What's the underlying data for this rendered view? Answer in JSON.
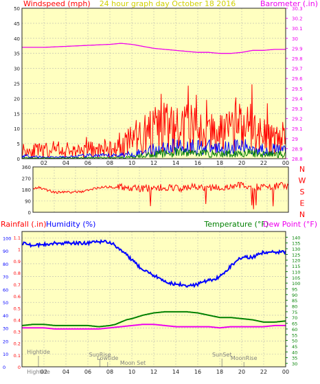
{
  "colors": {
    "background": "#ffffff",
    "plot_bg": "#ffffc0",
    "grid": "#b8b8b0",
    "frame": "#202020",
    "title": "#d0d000",
    "wind_gust": "#ff0000",
    "wind_avg": "#0000ff",
    "wind_low": "#008000",
    "barometer": "#ee00ee",
    "direction": "#ff0000",
    "rain": "#ff0000",
    "humidity": "#0000ff",
    "temperature": "#008000",
    "dewpoint": "#ee00ee",
    "axis_text": "#202020",
    "annotation": "#808080"
  },
  "chart_data": [
    {
      "type": "line",
      "title": "24 hour graph day   October 18 2016",
      "ylabel_left": "Windspeed (mph)",
      "ylabel_right": "Barometer (.in)",
      "x_ticks": [
        "02",
        "04",
        "06",
        "08",
        "10",
        "12",
        "14",
        "16",
        "18",
        "20",
        "22",
        "00"
      ],
      "y_left_ticks": [
        "0",
        "5",
        "10",
        "15",
        "20",
        "25",
        "30",
        "35",
        "40",
        "45",
        "50"
      ],
      "y_right_ticks": [
        "28.8",
        "28.9",
        "29",
        "29.1",
        "29.2",
        "29.3",
        "29.4",
        "29.5",
        "29.6",
        "29.7",
        "29.8",
        "29.9",
        "30",
        "30.1",
        "30.2",
        "30.3"
      ],
      "ylim_left": [
        0,
        50
      ],
      "ylim_right": [
        28.8,
        30.3
      ],
      "xlim": [
        0,
        24
      ],
      "grid": true,
      "series": [
        {
          "name": "Windspeed gust",
          "axis": "left",
          "color_key": "wind_gust",
          "x": [
            0,
            2,
            4,
            6,
            8,
            9,
            10,
            11,
            12,
            13,
            14,
            15,
            16,
            17,
            18,
            19,
            20,
            21,
            22,
            23,
            24
          ],
          "y": [
            3,
            2.5,
            2.5,
            3,
            3,
            4,
            6,
            8,
            9,
            10,
            9,
            10,
            10,
            9,
            8,
            9,
            10,
            10,
            8,
            8,
            7
          ]
        },
        {
          "name": "Windspeed average",
          "axis": "left",
          "color_key": "wind_avg",
          "x": [
            0,
            2,
            4,
            6,
            8,
            10,
            12,
            14,
            16,
            18,
            20,
            22,
            24
          ],
          "y": [
            1,
            0.5,
            0.5,
            1,
            1,
            1.5,
            3,
            4,
            4,
            3.5,
            4,
            3,
            3
          ]
        },
        {
          "name": "Windspeed low",
          "axis": "left",
          "color_key": "wind_low",
          "x": [
            0,
            2,
            4,
            6,
            8,
            10,
            12,
            14,
            16,
            18,
            20,
            22,
            24
          ],
          "y": [
            0.2,
            0.2,
            0.2,
            0.3,
            0.3,
            0.5,
            1.5,
            2,
            2,
            1.5,
            2,
            1.5,
            1.5
          ]
        },
        {
          "name": "Barometer",
          "axis": "right",
          "color_key": "barometer",
          "x": [
            0,
            2,
            4,
            6,
            8,
            9,
            10,
            11,
            12,
            13,
            14,
            15,
            16,
            17,
            18,
            19,
            20,
            21,
            22,
            23,
            24
          ],
          "y": [
            29.91,
            29.91,
            29.92,
            29.93,
            29.94,
            29.95,
            29.94,
            29.92,
            29.9,
            29.89,
            29.88,
            29.87,
            29.86,
            29.86,
            29.85,
            29.85,
            29.86,
            29.88,
            29.88,
            29.89,
            29.89
          ]
        }
      ]
    },
    {
      "type": "line",
      "ylabel_right_letters": [
        "N",
        "W",
        "S",
        "E",
        "N"
      ],
      "y_left_ticks": [
        "360",
        "270",
        "180",
        "90",
        "0"
      ],
      "ylim": [
        0,
        360
      ],
      "xlim": [
        0,
        24
      ],
      "grid": true,
      "series": [
        {
          "name": "Wind direction",
          "color_key": "direction",
          "x": [
            0,
            0.5,
            1,
            2,
            3,
            4,
            5,
            6,
            7,
            8,
            9,
            10,
            11,
            12,
            13,
            14,
            15,
            16,
            17,
            18,
            19,
            20,
            21,
            22,
            23,
            24
          ],
          "y": [
            190,
            200,
            185,
            160,
            160,
            160,
            170,
            195,
            200,
            200,
            195,
            190,
            190,
            195,
            195,
            190,
            200,
            195,
            195,
            200,
            210,
            210,
            200,
            195,
            210,
            210
          ]
        }
      ]
    },
    {
      "type": "line",
      "ylabel_left": "Rainfall (.in)",
      "ylabel_left2": "Humidity (%)",
      "ylabel_right": "Temperature (°F)",
      "ylabel_right2": "Dew Point (°F)",
      "x_ticks": [
        "02",
        "04",
        "06",
        "08",
        "10",
        "12",
        "14",
        "16",
        "18",
        "20",
        "22",
        "00"
      ],
      "y_left_humidity_ticks": [
        "0",
        "10",
        "20",
        "30",
        "40",
        "50",
        "60",
        "70",
        "80",
        "90",
        "100"
      ],
      "y_left_rain_ticks": [
        "0",
        "0.1",
        "0.2",
        "0.3",
        "0.4",
        "0.5",
        "0.6",
        "0.7",
        "0.8",
        "0.9",
        "1",
        "1.1"
      ],
      "y_right_ticks": [
        "30",
        "35",
        "40",
        "45",
        "50",
        "55",
        "60",
        "65",
        "70",
        "75",
        "80",
        "85",
        "90",
        "95",
        "100",
        "105",
        "110",
        "115",
        "120",
        "125",
        "130",
        "135",
        "140"
      ],
      "ylim_humidity": [
        0,
        105
      ],
      "ylim_rain": [
        0,
        1.15
      ],
      "ylim_temp": [
        27,
        145
      ],
      "xlim": [
        0,
        24
      ],
      "grid": true,
      "annotations": [
        {
          "text": "Hightide",
          "x": 1.5,
          "tier": 3
        },
        {
          "text": "SunRise",
          "x": 7.1,
          "tier": 2
        },
        {
          "text": "Lowtide",
          "x": 7.8,
          "tier": 1
        },
        {
          "text": "SunSet",
          "x": 18.2,
          "tier": 2
        },
        {
          "text": "Moon Set",
          "x": 10.1,
          "tier": 0
        },
        {
          "text": "MoonRise",
          "x": 20.2,
          "tier": 1
        }
      ],
      "x_tick_overlay": "Hightide",
      "series": [
        {
          "name": "Humidity",
          "axis": "humidity",
          "color_key": "humidity",
          "x": [
            0,
            0.5,
            1,
            2,
            3,
            4,
            5,
            6,
            7,
            8,
            8.5,
            9,
            9.5,
            10,
            10.5,
            11,
            11.5,
            12,
            12.5,
            13,
            13.5,
            14,
            14.5,
            15,
            15.5,
            16,
            16.5,
            17,
            17.5,
            18,
            18.5,
            19,
            19.5,
            20,
            21,
            22,
            23,
            24
          ],
          "y": [
            96,
            95,
            94,
            95,
            96,
            96,
            96,
            96,
            97,
            97,
            94,
            91,
            87,
            83,
            79,
            75,
            73,
            71,
            69,
            67,
            65,
            64,
            64,
            63,
            63,
            64,
            66,
            67,
            68,
            70,
            74,
            78,
            82,
            85,
            85,
            89,
            89,
            89
          ]
        },
        {
          "name": "Rainfall",
          "axis": "rain",
          "color_key": "rain",
          "x": [
            0,
            24
          ],
          "y": [
            0,
            0
          ]
        },
        {
          "name": "Temperature",
          "axis": "temp",
          "color_key": "temperature",
          "x": [
            0,
            1,
            2,
            3,
            4,
            5,
            6,
            7,
            8,
            8.5,
            9,
            9.5,
            10,
            11,
            12,
            13,
            14,
            15,
            16,
            17,
            18,
            19,
            20,
            21,
            22,
            23,
            24
          ],
          "y": [
            63,
            64,
            64,
            63,
            63,
            63,
            63,
            62,
            63,
            64,
            66,
            68,
            69,
            72,
            74,
            75,
            75,
            75,
            74,
            72,
            70,
            70,
            69,
            68,
            66,
            66,
            67
          ]
        },
        {
          "name": "Dew Point",
          "axis": "temp",
          "color_key": "dewpoint",
          "x": [
            0,
            1,
            2,
            3,
            4,
            5,
            6,
            7,
            8,
            9,
            10,
            11,
            12,
            13,
            14,
            15,
            16,
            17,
            18,
            19,
            20,
            21,
            22,
            23,
            24
          ],
          "y": [
            61,
            61,
            61,
            60,
            60,
            60,
            60,
            60,
            61,
            62,
            63,
            64,
            64,
            63,
            62,
            62,
            62,
            62,
            61,
            62,
            62,
            62,
            62,
            63,
            63
          ]
        }
      ]
    }
  ]
}
